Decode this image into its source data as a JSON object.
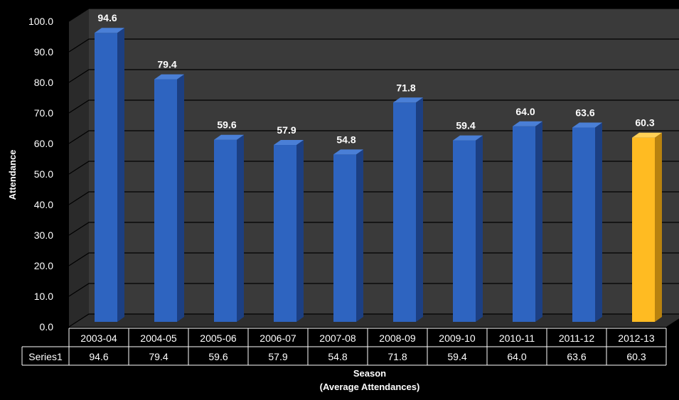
{
  "chart_data": {
    "type": "bar",
    "title": "",
    "xlabel": "Season",
    "xlabel_sub": "(Average Attendances)",
    "ylabel": "Attendance",
    "ylim": [
      0,
      100
    ],
    "yticks": [
      "0.0",
      "10.0",
      "20.0",
      "30.0",
      "40.0",
      "50.0",
      "60.0",
      "70.0",
      "80.0",
      "90.0",
      "100.0"
    ],
    "categories": [
      "2003-04",
      "2004-05",
      "2005-06",
      "2006-07",
      "2007-08",
      "2008-09",
      "2009-10",
      "2010-11",
      "2011-12",
      "2012-13"
    ],
    "series": [
      {
        "name": "Series1",
        "values": [
          94.6,
          79.4,
          59.6,
          57.9,
          54.8,
          71.8,
          59.4,
          64.0,
          63.6,
          60.3
        ],
        "labels": [
          "94.6",
          "79.4",
          "59.6",
          "57.9",
          "54.8",
          "71.8",
          "59.4",
          "64.0",
          "63.6",
          "60.3"
        ]
      }
    ],
    "grid": true,
    "data_table": true,
    "highlight_index": 9,
    "colors": {
      "bar": "#2e64c0",
      "bar_side": "#1c3f82",
      "bar_top": "#4a7fd6",
      "highlight": "#ffbb22",
      "highlight_side": "#b8820f",
      "highlight_top": "#ffd055",
      "wall": "#3a3a3a",
      "floor": "#2f2f2f",
      "grid": "#000000",
      "text": "#ffffff",
      "background": "#000000"
    }
  }
}
